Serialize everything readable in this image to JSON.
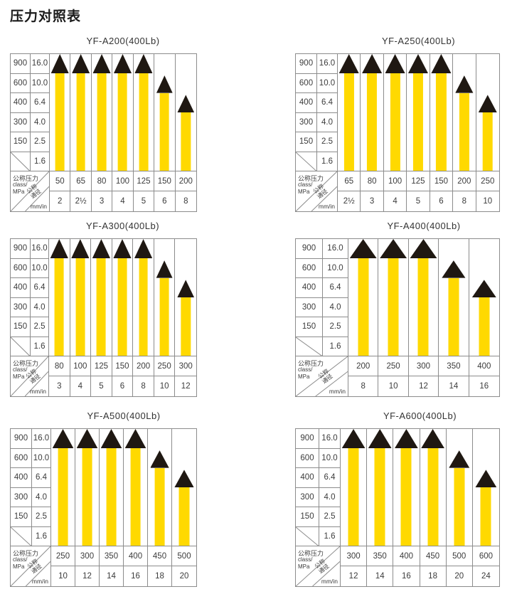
{
  "page_title": "压力对照表",
  "colors": {
    "bar_fill": "#FFD900",
    "marker_fill": "#1F1812",
    "grid_line": "#8C8C8C",
    "text": "#3C3C3C",
    "background": "#FFFFFF"
  },
  "axis": {
    "left_header_ticks": [
      "900",
      "600",
      "400",
      "300",
      "150",
      ""
    ],
    "mpa_ticks_labels": [
      "16.0",
      "10.0",
      "6.4",
      "4.0",
      "2.5",
      "1.6"
    ],
    "mpa_ticks_values": [
      16.0,
      10.0,
      6.4,
      4.0,
      2.5,
      1.6
    ]
  },
  "corner": {
    "pressure_label": "公称压力",
    "pressure_sub1": "class/",
    "pressure_sub2": "MPa",
    "size_label_1": "公称",
    "size_label_2": "通径",
    "size_unit": "mm/in"
  },
  "chart_data": [
    {
      "type": "bar",
      "title": "YF-A200(400Lb)",
      "class_row": [
        "50",
        "65",
        "80",
        "100",
        "125",
        "150",
        "200"
      ],
      "size_row": [
        "2",
        "2½",
        "3",
        "4",
        "5",
        "6",
        "8"
      ],
      "values_mpa": [
        16.0,
        16.0,
        16.0,
        16.0,
        16.0,
        10.0,
        6.4
      ],
      "y_ticks_class": [
        "900",
        "600",
        "400",
        "300",
        "150"
      ],
      "y_ticks_mpa": [
        16.0,
        10.0,
        6.4,
        4.0,
        2.5,
        1.6
      ],
      "ylim": [
        0,
        16.0
      ],
      "grid": false,
      "legend": false
    },
    {
      "type": "bar",
      "title": "YF-A250(400Lb)",
      "class_row": [
        "65",
        "80",
        "100",
        "125",
        "150",
        "200",
        "250"
      ],
      "size_row": [
        "2½",
        "3",
        "4",
        "5",
        "6",
        "8",
        "10"
      ],
      "values_mpa": [
        16.0,
        16.0,
        16.0,
        16.0,
        16.0,
        10.0,
        6.4
      ],
      "y_ticks_class": [
        "900",
        "600",
        "400",
        "300",
        "150"
      ],
      "y_ticks_mpa": [
        16.0,
        10.0,
        6.4,
        4.0,
        2.5,
        1.6
      ],
      "ylim": [
        0,
        16.0
      ],
      "grid": false,
      "legend": false
    },
    {
      "type": "bar",
      "title": "YF-A300(400Lb)",
      "class_row": [
        "80",
        "100",
        "125",
        "150",
        "200",
        "250",
        "300"
      ],
      "size_row": [
        "3",
        "4",
        "5",
        "6",
        "8",
        "10",
        "12"
      ],
      "values_mpa": [
        16.0,
        16.0,
        16.0,
        16.0,
        16.0,
        10.0,
        6.4
      ],
      "y_ticks_class": [
        "900",
        "600",
        "400",
        "300",
        "150"
      ],
      "y_ticks_mpa": [
        16.0,
        10.0,
        6.4,
        4.0,
        2.5,
        1.6
      ],
      "ylim": [
        0,
        16.0
      ],
      "grid": false,
      "legend": false
    },
    {
      "type": "bar",
      "title": "YF-A400(400Lb)",
      "class_row": [
        "200",
        "250",
        "300",
        "350",
        "400"
      ],
      "size_row": [
        "8",
        "10",
        "12",
        "14",
        "16"
      ],
      "values_mpa": [
        16.0,
        16.0,
        16.0,
        10.0,
        6.4
      ],
      "y_ticks_class": [
        "900",
        "600",
        "400",
        "300",
        "150"
      ],
      "y_ticks_mpa": [
        16.0,
        10.0,
        6.4,
        4.0,
        2.5,
        1.6
      ],
      "ylim": [
        0,
        16.0
      ],
      "grid": false,
      "legend": false
    },
    {
      "type": "bar",
      "title": "YF-A500(400Lb)",
      "class_row": [
        "250",
        "300",
        "350",
        "400",
        "450",
        "500"
      ],
      "size_row": [
        "10",
        "12",
        "14",
        "16",
        "18",
        "20"
      ],
      "values_mpa": [
        16.0,
        16.0,
        16.0,
        16.0,
        10.0,
        6.4
      ],
      "y_ticks_class": [
        "900",
        "600",
        "400",
        "300",
        "150"
      ],
      "y_ticks_mpa": [
        16.0,
        10.0,
        6.4,
        4.0,
        2.5,
        1.6
      ],
      "ylim": [
        0,
        16.0
      ],
      "grid": false,
      "legend": false
    },
    {
      "type": "bar",
      "title": "YF-A600(400Lb)",
      "class_row": [
        "300",
        "350",
        "400",
        "450",
        "500",
        "600"
      ],
      "size_row": [
        "12",
        "14",
        "16",
        "18",
        "20",
        "24"
      ],
      "values_mpa": [
        16.0,
        16.0,
        16.0,
        16.0,
        10.0,
        6.4
      ],
      "y_ticks_class": [
        "900",
        "600",
        "400",
        "300",
        "150"
      ],
      "y_ticks_mpa": [
        16.0,
        10.0,
        6.4,
        4.0,
        2.5,
        1.6
      ],
      "ylim": [
        0,
        16.0
      ],
      "grid": false,
      "legend": false
    }
  ]
}
